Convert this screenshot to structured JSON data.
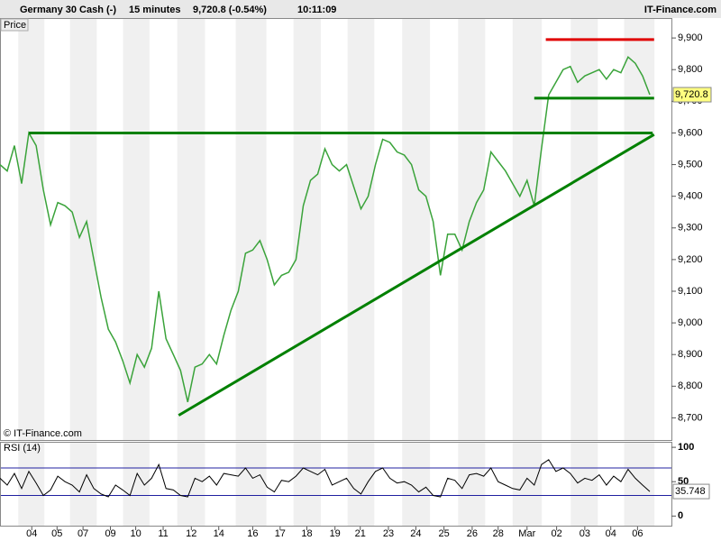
{
  "header": {
    "instrument": "Germany 30 Cash (-)",
    "interval": "15 minutes",
    "quote": "9,720.8 (-0.54%)",
    "time": "10:11:09",
    "brand": "IT-Finance.com"
  },
  "chart_data": [
    {
      "type": "line",
      "title": "Price",
      "credit": "© IT-Finance.com",
      "color": "#3aa33a",
      "x": [
        0,
        1,
        2,
        3,
        4,
        5,
        6,
        7,
        8,
        9,
        10,
        11,
        12,
        13,
        14,
        15,
        16,
        17,
        18,
        19,
        20,
        21,
        22,
        23,
        24,
        25,
        26,
        27,
        28,
        29,
        30,
        31,
        32,
        33,
        34,
        35,
        36,
        37,
        38,
        39,
        40,
        41,
        42,
        43,
        44,
        45,
        46,
        47,
        48,
        49,
        50,
        51,
        52,
        53,
        54,
        55,
        56,
        57,
        58,
        59,
        60,
        61,
        62,
        63,
        64,
        65,
        66,
        67,
        68,
        69,
        70,
        71,
        72,
        73,
        74,
        75,
        76,
        77,
        78,
        79,
        80,
        81,
        82,
        83,
        84,
        85,
        86,
        87,
        88,
        89,
        90
      ],
      "values": [
        9500,
        9480,
        9560,
        9440,
        9600,
        9560,
        9420,
        9310,
        9380,
        9370,
        9350,
        9270,
        9320,
        9200,
        9080,
        8980,
        8940,
        8880,
        8810,
        8900,
        8860,
        8920,
        9100,
        8950,
        8900,
        8850,
        8750,
        8860,
        8870,
        8900,
        8870,
        8960,
        9040,
        9100,
        9220,
        9230,
        9260,
        9200,
        9120,
        9150,
        9160,
        9200,
        9370,
        9450,
        9470,
        9550,
        9500,
        9480,
        9500,
        9430,
        9360,
        9400,
        9500,
        9580,
        9570,
        9540,
        9530,
        9500,
        9420,
        9400,
        9320,
        9150,
        9280,
        9280,
        9230,
        9320,
        9380,
        9420,
        9540,
        9510,
        9480,
        9440,
        9400,
        9450,
        9370,
        9550,
        9720,
        9760,
        9800,
        9810,
        9760,
        9780,
        9790,
        9800,
        9770,
        9800,
        9790,
        9840,
        9820,
        9780,
        9720.8
      ],
      "last_price": {
        "value": 9720.8,
        "label": "9,720.8"
      },
      "xlim": [
        0,
        93
      ],
      "xticks": [
        {
          "value": 4.4,
          "label": "04"
        },
        {
          "value": 7.9,
          "label": "05"
        },
        {
          "value": 11.5,
          "label": "07"
        },
        {
          "value": 15.3,
          "label": "09"
        },
        {
          "value": 18.8,
          "label": "10"
        },
        {
          "value": 22.6,
          "label": "11"
        },
        {
          "value": 26.5,
          "label": "12"
        },
        {
          "value": 30.3,
          "label": "14"
        },
        {
          "value": 35,
          "label": "16"
        },
        {
          "value": 38.8,
          "label": "17"
        },
        {
          "value": 42.5,
          "label": "18"
        },
        {
          "value": 46.4,
          "label": "19"
        },
        {
          "value": 49.9,
          "label": "21"
        },
        {
          "value": 53.8,
          "label": "23"
        },
        {
          "value": 57.6,
          "label": "24"
        },
        {
          "value": 61.5,
          "label": "25"
        },
        {
          "value": 65.4,
          "label": "26"
        },
        {
          "value": 69,
          "label": "28"
        },
        {
          "value": 73,
          "label": "Mar"
        },
        {
          "value": 77.1,
          "label": "02"
        },
        {
          "value": 81,
          "label": "03"
        },
        {
          "value": 84.6,
          "label": "04"
        },
        {
          "value": 88.3,
          "label": "06"
        }
      ],
      "ylim": [
        8630,
        9963
      ],
      "yticks": [
        {
          "value": 8700,
          "label": "8,700"
        },
        {
          "value": 8800,
          "label": "8,800"
        },
        {
          "value": 8900,
          "label": "8,900"
        },
        {
          "value": 9000,
          "label": "9,000"
        },
        {
          "value": 9100,
          "label": "9,100"
        },
        {
          "value": 9200,
          "label": "9,200"
        },
        {
          "value": 9300,
          "label": "9,300"
        },
        {
          "value": 9400,
          "label": "9,400"
        },
        {
          "value": 9500,
          "label": "9,500"
        },
        {
          "value": 9600,
          "label": "9,600"
        },
        {
          "value": 9700,
          "label": "9,700"
        },
        {
          "value": 9800,
          "label": "9,800"
        },
        {
          "value": 9900,
          "label": "9,900"
        }
      ],
      "lines": [
        {
          "color": "#008000",
          "x": [
            4,
            90.4
          ],
          "y": [
            9600,
            9600
          ]
        },
        {
          "color": "#008000",
          "x": [
            74,
            90.6
          ],
          "y": [
            9710,
            9710
          ]
        },
        {
          "color": "#e00000",
          "x": [
            75.6,
            90.6
          ],
          "y": [
            9895,
            9895
          ]
        },
        {
          "color": "#008000",
          "x": [
            24.75,
            90.6
          ],
          "y": [
            8708,
            9595
          ]
        }
      ]
    },
    {
      "type": "line",
      "title": "RSI (14)",
      "color": "#000000",
      "x": [
        0,
        1,
        2,
        3,
        4,
        5,
        6,
        7,
        8,
        9,
        10,
        11,
        12,
        13,
        14,
        15,
        16,
        17,
        18,
        19,
        20,
        21,
        22,
        23,
        24,
        25,
        26,
        27,
        28,
        29,
        30,
        31,
        32,
        33,
        34,
        35,
        36,
        37,
        38,
        39,
        40,
        41,
        42,
        43,
        44,
        45,
        46,
        47,
        48,
        49,
        50,
        51,
        52,
        53,
        54,
        55,
        56,
        57,
        58,
        59,
        60,
        61,
        62,
        63,
        64,
        65,
        66,
        67,
        68,
        69,
        70,
        71,
        72,
        73,
        74,
        75,
        76,
        77,
        78,
        79,
        80,
        81,
        82,
        83,
        84,
        85,
        86,
        87,
        88,
        89,
        90
      ],
      "values": [
        55,
        45,
        62,
        40,
        65,
        48,
        30,
        38,
        58,
        50,
        45,
        35,
        60,
        40,
        32,
        28,
        45,
        38,
        30,
        62,
        45,
        55,
        75,
        40,
        38,
        30,
        28,
        55,
        50,
        58,
        45,
        62,
        60,
        58,
        70,
        55,
        60,
        42,
        35,
        52,
        50,
        58,
        70,
        65,
        60,
        68,
        45,
        50,
        55,
        40,
        32,
        50,
        65,
        70,
        55,
        48,
        50,
        45,
        35,
        42,
        30,
        28,
        55,
        52,
        40,
        60,
        62,
        58,
        70,
        50,
        45,
        40,
        38,
        55,
        45,
        75,
        82,
        65,
        70,
        62,
        48,
        55,
        52,
        60,
        45,
        58,
        50,
        68,
        55,
        45,
        35.748
      ],
      "last": 35.748,
      "levels": [
        30,
        70
      ],
      "level_color": "#2020a0",
      "ylim": [
        -14,
        108
      ],
      "yticks": [
        0,
        50,
        100
      ]
    }
  ]
}
